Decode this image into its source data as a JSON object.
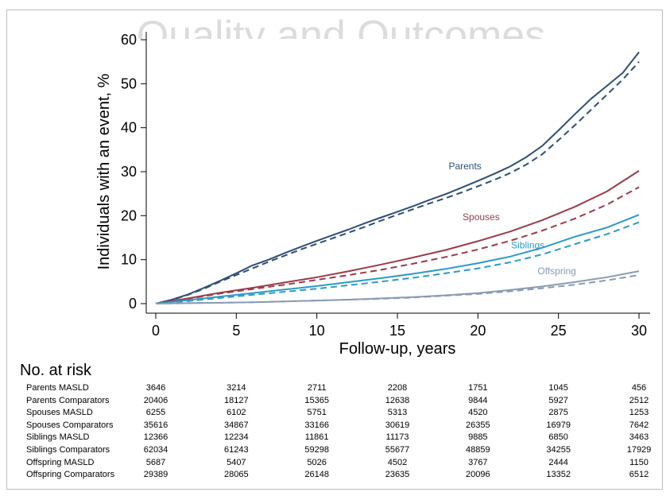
{
  "watermark": "Quality and Outcomes",
  "chart_data": {
    "type": "line",
    "title": "",
    "xlabel": "Follow-up, years",
    "ylabel": "Individuals with an event, %",
    "xlim": [
      0,
      30
    ],
    "ylim": [
      0,
      60
    ],
    "xticks": [
      0,
      5,
      10,
      15,
      20,
      25,
      30
    ],
    "yticks": [
      0,
      10,
      20,
      30,
      40,
      50,
      60
    ],
    "grid": false,
    "legend": "none",
    "line_styles": {
      "MASLD": "solid",
      "Comparators": "dashed"
    },
    "series": [
      {
        "name": "Parents",
        "group": "MASLD",
        "color": "#2e4f74",
        "x": [
          0,
          1,
          2,
          3,
          4,
          5,
          6,
          7,
          8,
          9,
          10,
          11,
          12,
          13,
          14,
          15,
          16,
          17,
          18,
          19,
          20,
          21,
          22,
          23,
          24,
          25,
          26,
          27,
          28,
          29,
          30
        ],
        "y": [
          0,
          0.9,
          2.1,
          3.6,
          5.2,
          6.9,
          8.7,
          10.0,
          11.5,
          12.9,
          14.3,
          15.6,
          16.9,
          18.3,
          19.6,
          20.9,
          22.2,
          23.6,
          24.9,
          26.4,
          27.9,
          29.5,
          31.2,
          33.3,
          35.9,
          39.4,
          43.0,
          46.5,
          49.5,
          52.5,
          57.2
        ]
      },
      {
        "name": "Parents comparators",
        "group": "Comparators",
        "color": "#2e4f74",
        "x": [
          0,
          1,
          2,
          3,
          4,
          5,
          6,
          7,
          8,
          9,
          10,
          11,
          12,
          13,
          14,
          15,
          16,
          17,
          18,
          19,
          20,
          21,
          22,
          23,
          24,
          25,
          26,
          27,
          28,
          29,
          30
        ],
        "y": [
          0,
          0.8,
          2.0,
          3.4,
          5.0,
          6.5,
          8.0,
          9.5,
          10.9,
          12.3,
          13.6,
          14.9,
          16.2,
          17.5,
          18.9,
          20.2,
          21.5,
          22.8,
          24.0,
          25.3,
          26.7,
          28.1,
          29.7,
          31.6,
          34.0,
          37.2,
          40.5,
          44.0,
          47.5,
          51.0,
          55.0
        ]
      },
      {
        "name": "Spouses",
        "group": "MASLD",
        "color": "#9b3b4a",
        "x": [
          0,
          2,
          4,
          6,
          8,
          10,
          12,
          14,
          16,
          18,
          20,
          22,
          24,
          26,
          28,
          30
        ],
        "y": [
          0,
          1.2,
          2.5,
          3.6,
          4.8,
          6.0,
          7.4,
          8.9,
          10.5,
          12.2,
          14.2,
          16.4,
          19.0,
          22.0,
          25.5,
          30.2
        ]
      },
      {
        "name": "Spouses comparators",
        "group": "Comparators",
        "color": "#9b3b4a",
        "x": [
          0,
          2,
          4,
          6,
          8,
          10,
          12,
          14,
          16,
          18,
          20,
          22,
          24,
          26,
          28,
          30
        ],
        "y": [
          0,
          1.1,
          2.3,
          3.3,
          4.3,
          5.4,
          6.5,
          7.7,
          9.1,
          10.6,
          12.3,
          14.3,
          16.6,
          19.3,
          22.5,
          26.5
        ]
      },
      {
        "name": "Siblings",
        "group": "MASLD",
        "color": "#2b9ac8",
        "x": [
          0,
          2,
          4,
          6,
          8,
          10,
          12,
          14,
          16,
          18,
          20,
          22,
          24,
          26,
          28,
          30
        ],
        "y": [
          0,
          0.8,
          1.6,
          2.4,
          3.2,
          4.0,
          4.9,
          5.8,
          6.8,
          7.9,
          9.2,
          10.7,
          12.7,
          15.2,
          17.3,
          20.2
        ]
      },
      {
        "name": "Siblings comparators",
        "group": "Comparators",
        "color": "#2b9ac8",
        "x": [
          0,
          2,
          4,
          6,
          8,
          10,
          12,
          14,
          16,
          18,
          20,
          22,
          24,
          26,
          28,
          30
        ],
        "y": [
          0,
          0.6,
          1.3,
          2.0,
          2.7,
          3.4,
          4.2,
          5.0,
          5.9,
          6.9,
          8.0,
          9.4,
          11.2,
          13.5,
          15.8,
          18.5
        ]
      },
      {
        "name": "Offspring",
        "group": "MASLD",
        "color": "#8a9bb3",
        "x": [
          0,
          2,
          4,
          6,
          8,
          10,
          12,
          14,
          16,
          18,
          20,
          22,
          24,
          26,
          28,
          30
        ],
        "y": [
          0,
          0.1,
          0.2,
          0.3,
          0.5,
          0.7,
          0.9,
          1.2,
          1.5,
          1.9,
          2.4,
          3.1,
          3.9,
          4.9,
          6.0,
          7.4
        ]
      },
      {
        "name": "Offspring comparators",
        "group": "Comparators",
        "color": "#8a9bb3",
        "x": [
          0,
          2,
          4,
          6,
          8,
          10,
          12,
          14,
          16,
          18,
          20,
          22,
          24,
          26,
          28,
          30
        ],
        "y": [
          0,
          0.1,
          0.2,
          0.3,
          0.5,
          0.7,
          0.9,
          1.1,
          1.4,
          1.8,
          2.2,
          2.8,
          3.5,
          4.3,
          5.3,
          6.5
        ]
      }
    ],
    "annotations": [
      {
        "text": "Parents",
        "x": 19.2,
        "y": 30.5,
        "color": "#2e4f74"
      },
      {
        "text": "Spouses",
        "x": 20.2,
        "y": 19.0,
        "color": "#9b3b4a"
      },
      {
        "text": "Siblings",
        "x": 23.1,
        "y": 12.6,
        "color": "#2b9ac8"
      },
      {
        "text": "Offspring",
        "x": 24.9,
        "y": 6.7,
        "color": "#8a9bb3"
      }
    ]
  },
  "risk_table": {
    "heading": "No. at risk",
    "times": [
      0,
      5,
      10,
      15,
      20,
      25,
      30
    ],
    "rows": [
      {
        "label": "Parents MASLD",
        "values": [
          3646,
          3214,
          2711,
          2208,
          1751,
          1045,
          456
        ]
      },
      {
        "label": "Parents Comparators",
        "values": [
          20406,
          18127,
          15365,
          12638,
          9844,
          5927,
          2512
        ]
      },
      {
        "label": "Spouses MASLD",
        "values": [
          6255,
          6102,
          5751,
          5313,
          4520,
          2875,
          1253
        ]
      },
      {
        "label": "Spouses Comparators",
        "values": [
          35616,
          34867,
          33166,
          30619,
          26355,
          16979,
          7642
        ]
      },
      {
        "label": "Siblings MASLD",
        "values": [
          12366,
          12234,
          11861,
          11173,
          9885,
          6850,
          3463
        ]
      },
      {
        "label": "Siblings Comparators",
        "values": [
          62034,
          61243,
          59298,
          55677,
          48859,
          34255,
          17929
        ]
      },
      {
        "label": "Offspring MASLD",
        "values": [
          5687,
          5407,
          5026,
          4502,
          3767,
          2444,
          1150
        ]
      },
      {
        "label": "Offspring Comparators",
        "values": [
          29389,
          28065,
          26148,
          23635,
          20096,
          13352,
          6512
        ]
      }
    ]
  }
}
